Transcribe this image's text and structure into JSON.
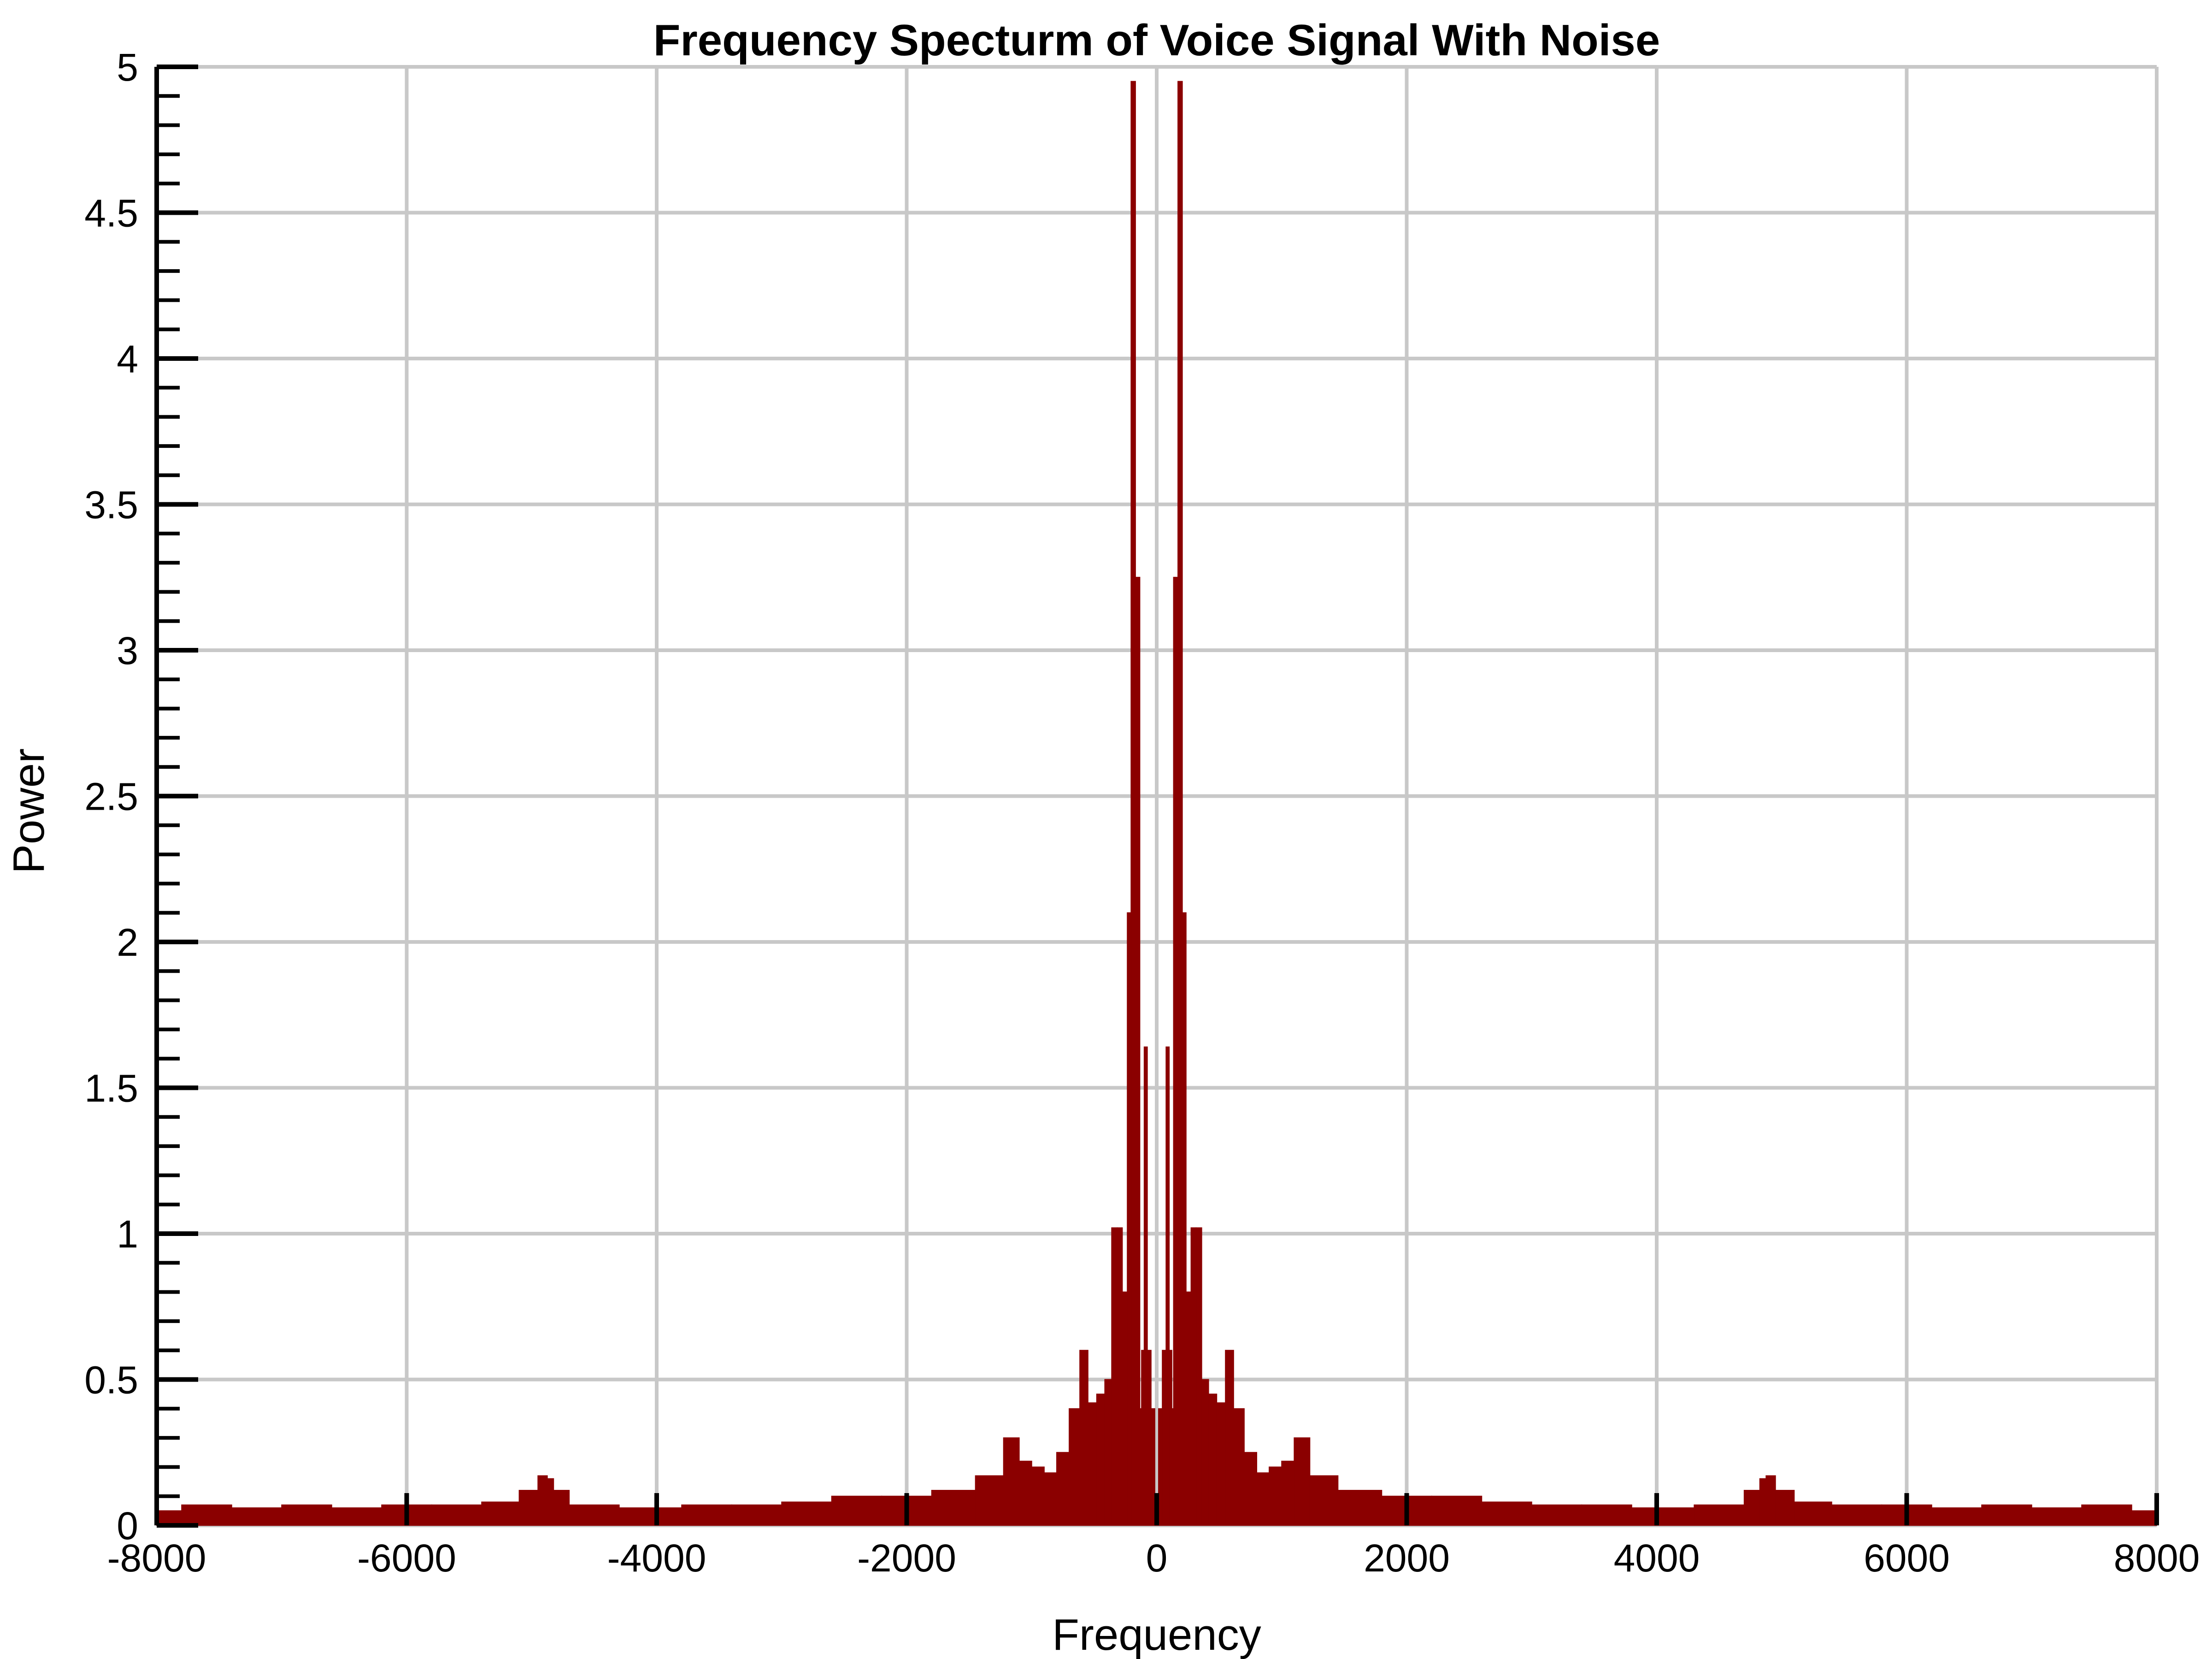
{
  "chart_data": {
    "type": "bar",
    "title": "Frequency Specturm of Voice Signal With Noise",
    "xlabel": "Frequency",
    "ylabel": "Power",
    "xlim": [
      -8000,
      8000
    ],
    "ylim": [
      0,
      5
    ],
    "xticks": [
      -8000,
      -6000,
      -4000,
      -2000,
      0,
      2000,
      4000,
      6000,
      8000
    ],
    "xtick_labels": [
      "-8000",
      "-6000",
      "-4000",
      "-2000",
      "0",
      "2000",
      "4000",
      "6000",
      "8000"
    ],
    "yticks": [
      0,
      0.5,
      1,
      1.5,
      2,
      2.5,
      3,
      3.5,
      4,
      4.5,
      5
    ],
    "ytick_labels": [
      "0",
      "0.5",
      "1",
      "1.5",
      "2",
      "2.5",
      "3",
      "3.5",
      "4",
      "4.5",
      "5"
    ],
    "grid": true,
    "legend": "none",
    "color": "#8b0000",
    "series": [
      {
        "x": [
          -8000,
          -7600,
          -7200,
          -6800,
          -6400,
          -6000,
          -5600,
          -5200,
          -5000,
          -4900,
          -4850,
          -4800,
          -4600,
          -4000,
          -3600,
          -3200,
          -2800,
          -2400,
          -2000,
          -1600,
          -1300,
          -1150,
          -1050,
          -950,
          -850,
          -750,
          -650,
          -580,
          -520,
          -440,
          -390,
          -330,
          -300,
          -250,
          -220,
          -190,
          -150,
          -120,
          -110,
          -90,
          -60,
          -30,
          0,
          30,
          60,
          90,
          110,
          120,
          150,
          190,
          220,
          250,
          300,
          330,
          390,
          440,
          520,
          580,
          650,
          750,
          850,
          950,
          1050,
          1150,
          1300,
          1600,
          2000,
          2400,
          2800,
          3200,
          3600,
          4000,
          4600,
          4800,
          4850,
          4900,
          5000,
          5200,
          5600,
          6000,
          6400,
          6800,
          7200,
          7600,
          8000
        ],
        "values": [
          0.05,
          0.07,
          0.06,
          0.07,
          0.06,
          0.07,
          0.07,
          0.08,
          0.12,
          0.17,
          0.16,
          0.12,
          0.07,
          0.06,
          0.07,
          0.07,
          0.08,
          0.1,
          0.1,
          0.12,
          0.17,
          0.3,
          0.22,
          0.2,
          0.18,
          0.25,
          0.4,
          0.6,
          0.42,
          0.45,
          0.5,
          1.02,
          1.02,
          0.8,
          2.1,
          4.95,
          3.25,
          0.4,
          0.6,
          1.64,
          0.6,
          0.4,
          0.05,
          0.4,
          0.6,
          1.64,
          0.6,
          0.4,
          3.25,
          4.95,
          2.1,
          0.8,
          1.02,
          1.02,
          0.5,
          0.45,
          0.42,
          0.6,
          0.4,
          0.25,
          0.18,
          0.2,
          0.22,
          0.3,
          0.17,
          0.12,
          0.1,
          0.1,
          0.08,
          0.07,
          0.07,
          0.06,
          0.07,
          0.12,
          0.16,
          0.17,
          0.12,
          0.08,
          0.07,
          0.07,
          0.06,
          0.07,
          0.06,
          0.07,
          0.05
        ]
      }
    ]
  }
}
